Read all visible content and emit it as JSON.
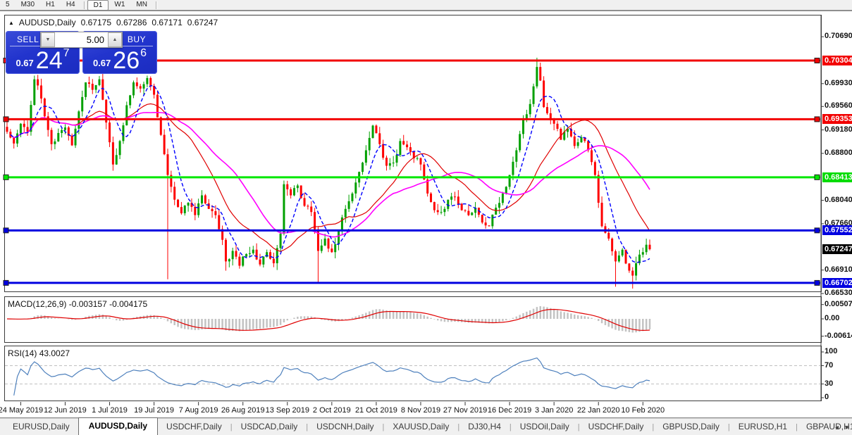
{
  "toolbar": {
    "timeframes": [
      {
        "label": "5",
        "active": false
      },
      {
        "label": "M30",
        "active": false
      },
      {
        "label": "H1",
        "active": false
      },
      {
        "label": "H4",
        "active": false
      },
      {
        "label": "D1",
        "active": true
      },
      {
        "label": "W1",
        "active": false
      },
      {
        "label": "MN",
        "active": false
      }
    ]
  },
  "chart_header": {
    "collapse_icon": "▲",
    "symbol": "AUDUSD,Daily",
    "open": "0.67175",
    "high": "0.67286",
    "low": "0.67171",
    "close": "0.67247"
  },
  "trade_panel": {
    "sell_label": "SELL",
    "buy_label": "BUY",
    "volume": "5.00",
    "down_arrow": "▼",
    "up_arrow": "▲",
    "sell_price": {
      "prefix": "0.67",
      "big": "24",
      "sup": "7"
    },
    "buy_price": {
      "prefix": "0.67",
      "big": "26",
      "sup": "6"
    }
  },
  "price_axis": {
    "plain_ticks": [
      {
        "label": "0.70690",
        "price": 0.7069
      },
      {
        "label": "0.69930",
        "price": 0.6993
      },
      {
        "label": "0.69560",
        "price": 0.6956
      },
      {
        "label": "0.69180",
        "price": 0.6918
      },
      {
        "label": "0.68800",
        "price": 0.688
      },
      {
        "label": "0.68040",
        "price": 0.6804
      },
      {
        "label": "0.67660",
        "price": 0.6766
      },
      {
        "label": "0.66910",
        "price": 0.6691
      },
      {
        "label": "0.66530",
        "price": 0.6653
      }
    ],
    "badges": [
      {
        "label": "0.70304",
        "price": 0.70304,
        "bg": "#f20000",
        "fg": "#ffffff",
        "line": true
      },
      {
        "label": "0.69353",
        "price": 0.69353,
        "bg": "#f20000",
        "fg": "#ffffff",
        "line": true
      },
      {
        "label": "0.68413",
        "price": 0.68413,
        "bg": "#00dc00",
        "fg": "#ffffff",
        "line": true
      },
      {
        "label": "0.67552",
        "price": 0.67552,
        "bg": "#0000e0",
        "fg": "#ffffff",
        "line": true
      },
      {
        "label": "0.67247",
        "price": 0.67247,
        "bg": "#000000",
        "fg": "#ffffff",
        "line": false
      },
      {
        "label": "0.66702",
        "price": 0.66702,
        "bg": "#0000e0",
        "fg": "#ffffff",
        "line": true
      }
    ]
  },
  "macd_panel": {
    "label": "MACD(12,26,9)",
    "values": "-0.003157 -0.004175",
    "axis": [
      {
        "label": "0.005076",
        "value": 0.005076
      },
      {
        "label": "0.00",
        "value": 0
      },
      {
        "label": "-0.006148",
        "value": -0.006148
      }
    ]
  },
  "rsi_panel": {
    "label": "RSI(14)",
    "value": "43.0027",
    "axis": [
      {
        "label": "100",
        "value": 100,
        "dashed": false
      },
      {
        "label": "70",
        "value": 70,
        "dashed": true
      },
      {
        "label": "30",
        "value": 30,
        "dashed": true
      },
      {
        "label": "0",
        "value": 0,
        "dashed": false
      }
    ]
  },
  "date_axis": [
    {
      "label": "24 May 2019",
      "i": 4
    },
    {
      "label": "12 Jun 2019",
      "i": 17
    },
    {
      "label": "1 Jul 2019",
      "i": 30
    },
    {
      "label": "19 Jul 2019",
      "i": 43
    },
    {
      "label": "7 Aug 2019",
      "i": 56
    },
    {
      "label": "26 Aug 2019",
      "i": 69
    },
    {
      "label": "13 Sep 2019",
      "i": 82
    },
    {
      "label": "2 Oct 2019",
      "i": 95
    },
    {
      "label": "21 Oct 2019",
      "i": 108
    },
    {
      "label": "8 Nov 2019",
      "i": 121
    },
    {
      "label": "27 Nov 2019",
      "i": 134
    },
    {
      "label": "16 Dec 2019",
      "i": 147
    },
    {
      "label": "3 Jan 2020",
      "i": 160
    },
    {
      "label": "22 Jan 2020",
      "i": 173
    },
    {
      "label": "10 Feb 2020",
      "i": 186
    }
  ],
  "bottom_tabs": {
    "tabs": [
      {
        "label": "EURUSD,Daily",
        "active": false
      },
      {
        "label": "AUDUSD,Daily",
        "active": true
      },
      {
        "label": "USDCHF,Daily",
        "active": false
      },
      {
        "label": "USDCAD,Daily",
        "active": false
      },
      {
        "label": "USDCNH,Daily",
        "active": false
      },
      {
        "label": "XAUUSD,Daily",
        "active": false
      },
      {
        "label": "DJ30,H4",
        "active": false
      },
      {
        "label": "USDOil,Daily",
        "active": false
      },
      {
        "label": "USDCHF,Daily",
        "active": false
      },
      {
        "label": "GBPUSD,Daily",
        "active": false
      },
      {
        "label": "EURUSD,H1",
        "active": false
      },
      {
        "label": "GBPAUD,H1",
        "active": false
      }
    ],
    "scroll_left": "◂",
    "scroll_right": "▸"
  },
  "chart_data": {
    "type": "candlestick",
    "symbol": "AUDUSD",
    "timeframe": "Daily",
    "current_bar": {
      "open": 0.67175,
      "high": 0.67286,
      "low": 0.67171,
      "close": 0.67247
    },
    "candle_count": 189,
    "noise": 0.0011,
    "price_path": [
      [
        0,
        0.6915
      ],
      [
        2,
        0.6896
      ],
      [
        4,
        0.6928
      ],
      [
        6,
        0.6915
      ],
      [
        8,
        0.7
      ],
      [
        9,
        0.699
      ],
      [
        11,
        0.694
      ],
      [
        13,
        0.6895
      ],
      [
        15,
        0.6913
      ],
      [
        17,
        0.6922
      ],
      [
        19,
        0.6893
      ],
      [
        21,
        0.6948
      ],
      [
        23,
        0.6995
      ],
      [
        25,
        0.6983
      ],
      [
        27,
        0.7
      ],
      [
        29,
        0.693
      ],
      [
        31,
        0.6862
      ],
      [
        33,
        0.69
      ],
      [
        35,
        0.6958
      ],
      [
        37,
        0.6995
      ],
      [
        39,
        0.6985
      ],
      [
        41,
        0.7002
      ],
      [
        43,
        0.6975
      ],
      [
        45,
        0.691
      ],
      [
        47,
        0.6845
      ],
      [
        49,
        0.6805
      ],
      [
        51,
        0.6783
      ],
      [
        53,
        0.68
      ],
      [
        55,
        0.678
      ],
      [
        57,
        0.6812
      ],
      [
        59,
        0.679
      ],
      [
        61,
        0.678
      ],
      [
        63,
        0.674
      ],
      [
        64,
        0.6705
      ],
      [
        66,
        0.6722
      ],
      [
        68,
        0.6698
      ],
      [
        70,
        0.6717
      ],
      [
        72,
        0.6724
      ],
      [
        74,
        0.67
      ],
      [
        76,
        0.672
      ],
      [
        78,
        0.6702
      ],
      [
        80,
        0.675
      ],
      [
        81,
        0.683
      ],
      [
        83,
        0.6812
      ],
      [
        85,
        0.6828
      ],
      [
        87,
        0.6795
      ],
      [
        89,
        0.6785
      ],
      [
        91,
        0.6722
      ],
      [
        93,
        0.6742
      ],
      [
        95,
        0.672
      ],
      [
        97,
        0.6755
      ],
      [
        99,
        0.679
      ],
      [
        101,
        0.6815
      ],
      [
        103,
        0.685
      ],
      [
        105,
        0.6885
      ],
      [
        107,
        0.6925
      ],
      [
        109,
        0.6895
      ],
      [
        111,
        0.686
      ],
      [
        113,
        0.6865
      ],
      [
        115,
        0.69
      ],
      [
        117,
        0.689
      ],
      [
        119,
        0.6872
      ],
      [
        121,
        0.6862
      ],
      [
        123,
        0.6815
      ],
      [
        125,
        0.6788
      ],
      [
        127,
        0.6785
      ],
      [
        129,
        0.6805
      ],
      [
        131,
        0.681
      ],
      [
        133,
        0.6788
      ],
      [
        135,
        0.678
      ],
      [
        137,
        0.6792
      ],
      [
        139,
        0.6768
      ],
      [
        141,
        0.6762
      ],
      [
        143,
        0.6792
      ],
      [
        145,
        0.6815
      ],
      [
        147,
        0.6845
      ],
      [
        149,
        0.6885
      ],
      [
        151,
        0.6935
      ],
      [
        153,
        0.696
      ],
      [
        155,
        0.702
      ],
      [
        156,
        0.6998
      ],
      [
        157,
        0.6955
      ],
      [
        158,
        0.6945
      ],
      [
        160,
        0.6928
      ],
      [
        162,
        0.6902
      ],
      [
        164,
        0.692
      ],
      [
        166,
        0.6892
      ],
      [
        168,
        0.6906
      ],
      [
        170,
        0.6885
      ],
      [
        172,
        0.6845
      ],
      [
        173,
        0.68
      ],
      [
        174,
        0.6762
      ],
      [
        176,
        0.6742
      ],
      [
        178,
        0.6705
      ],
      [
        180,
        0.6724
      ],
      [
        182,
        0.669
      ],
      [
        183,
        0.6682
      ],
      [
        184,
        0.6702
      ],
      [
        185,
        0.6716
      ],
      [
        186,
        0.672
      ],
      [
        187,
        0.6732
      ],
      [
        188,
        0.67247
      ]
    ],
    "wick_events": [
      {
        "i": 8,
        "high": 0.7006
      },
      {
        "i": 41,
        "high": 0.7006
      },
      {
        "i": 47,
        "low": 0.6676
      },
      {
        "i": 64,
        "low": 0.669
      },
      {
        "i": 91,
        "low": 0.667
      },
      {
        "i": 155,
        "high": 0.7035
      },
      {
        "i": 178,
        "low": 0.6664
      },
      {
        "i": 183,
        "low": 0.6661
      }
    ],
    "h_lines": [
      {
        "price": 0.70304,
        "color": "#f20000"
      },
      {
        "price": 0.69353,
        "color": "#f20000"
      },
      {
        "price": 0.68413,
        "color": "#00e800"
      },
      {
        "price": 0.67552,
        "color": "#0000e0"
      },
      {
        "price": 0.66702,
        "color": "#0000e0"
      }
    ],
    "indicators": {
      "ma_fast": {
        "period": 7,
        "color": "#0000ff",
        "style": "dashed"
      },
      "ma_mid": {
        "period": 20,
        "color": "#e00000",
        "style": "solid"
      },
      "ma_slow": {
        "period": 33,
        "color": "#ff00ff",
        "style": "solid"
      },
      "macd": {
        "fast": 12,
        "slow": 26,
        "signal": 9,
        "hist_color": "#c3c3c3",
        "signal_color": "#e00000",
        "main_value": -0.003157,
        "signal_value": -0.004175
      },
      "rsi": {
        "period": 14,
        "color": "#4f81bd",
        "value": 43.0027,
        "levels": [
          70,
          30
        ],
        "level_color": "#c0c0c0"
      }
    },
    "colors": {
      "bull": "#00a000",
      "bear": "#fe0000",
      "background": "#ffffff"
    }
  }
}
